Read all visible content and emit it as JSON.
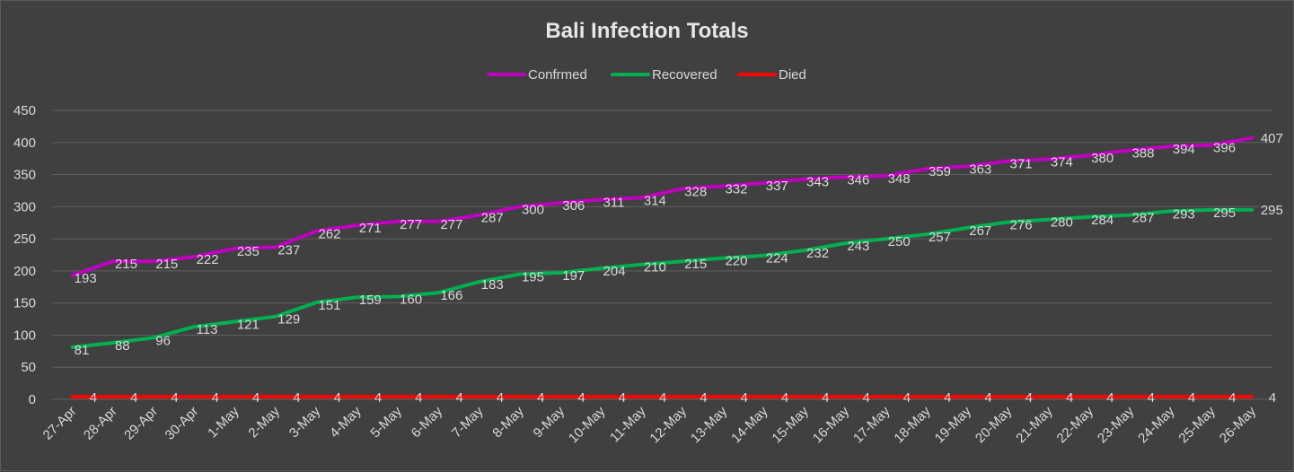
{
  "chart_data": {
    "type": "line",
    "title": "Bali Infection Totals",
    "xlabel": "",
    "ylabel": "",
    "ylim": [
      0,
      450
    ],
    "yticks": [
      0,
      50,
      100,
      150,
      200,
      250,
      300,
      350,
      400,
      450
    ],
    "grid": true,
    "legend_position": "top",
    "x": [
      "27-Apr",
      "28-Apr",
      "29-Apr",
      "30-Apr",
      "1-May",
      "2-May",
      "3-May",
      "4-May",
      "5-May",
      "6-May",
      "7-May",
      "8-May",
      "9-May",
      "10-May",
      "11-May",
      "12-May",
      "13-May",
      "14-May",
      "15-May",
      "16-May",
      "17-May",
      "18-May",
      "19-May",
      "20-May",
      "21-May",
      "22-May",
      "23-May",
      "24-May",
      "25-May",
      "26-May"
    ],
    "series": [
      {
        "name": "Confrmed",
        "color": "#c000c0",
        "values": [
          193,
          215,
          215,
          222,
          235,
          237,
          262,
          271,
          277,
          277,
          287,
          300,
          306,
          311,
          314,
          328,
          332,
          337,
          343,
          346,
          348,
          359,
          363,
          371,
          374,
          380,
          388,
          394,
          396,
          407
        ]
      },
      {
        "name": "Recovered",
        "color": "#00b050",
        "values": [
          81,
          88,
          96,
          113,
          121,
          129,
          151,
          159,
          160,
          166,
          183,
          195,
          197,
          204,
          210,
          215,
          220,
          224,
          232,
          243,
          250,
          257,
          267,
          276,
          280,
          284,
          287,
          293,
          295,
          295
        ]
      },
      {
        "name": "Died",
        "color": "#ff0000",
        "values": [
          4,
          4,
          4,
          4,
          4,
          4,
          4,
          4,
          4,
          4,
          4,
          4,
          4,
          4,
          4,
          4,
          4,
          4,
          4,
          4,
          4,
          4,
          4,
          4,
          4,
          4,
          4,
          4,
          4,
          4
        ]
      }
    ]
  }
}
